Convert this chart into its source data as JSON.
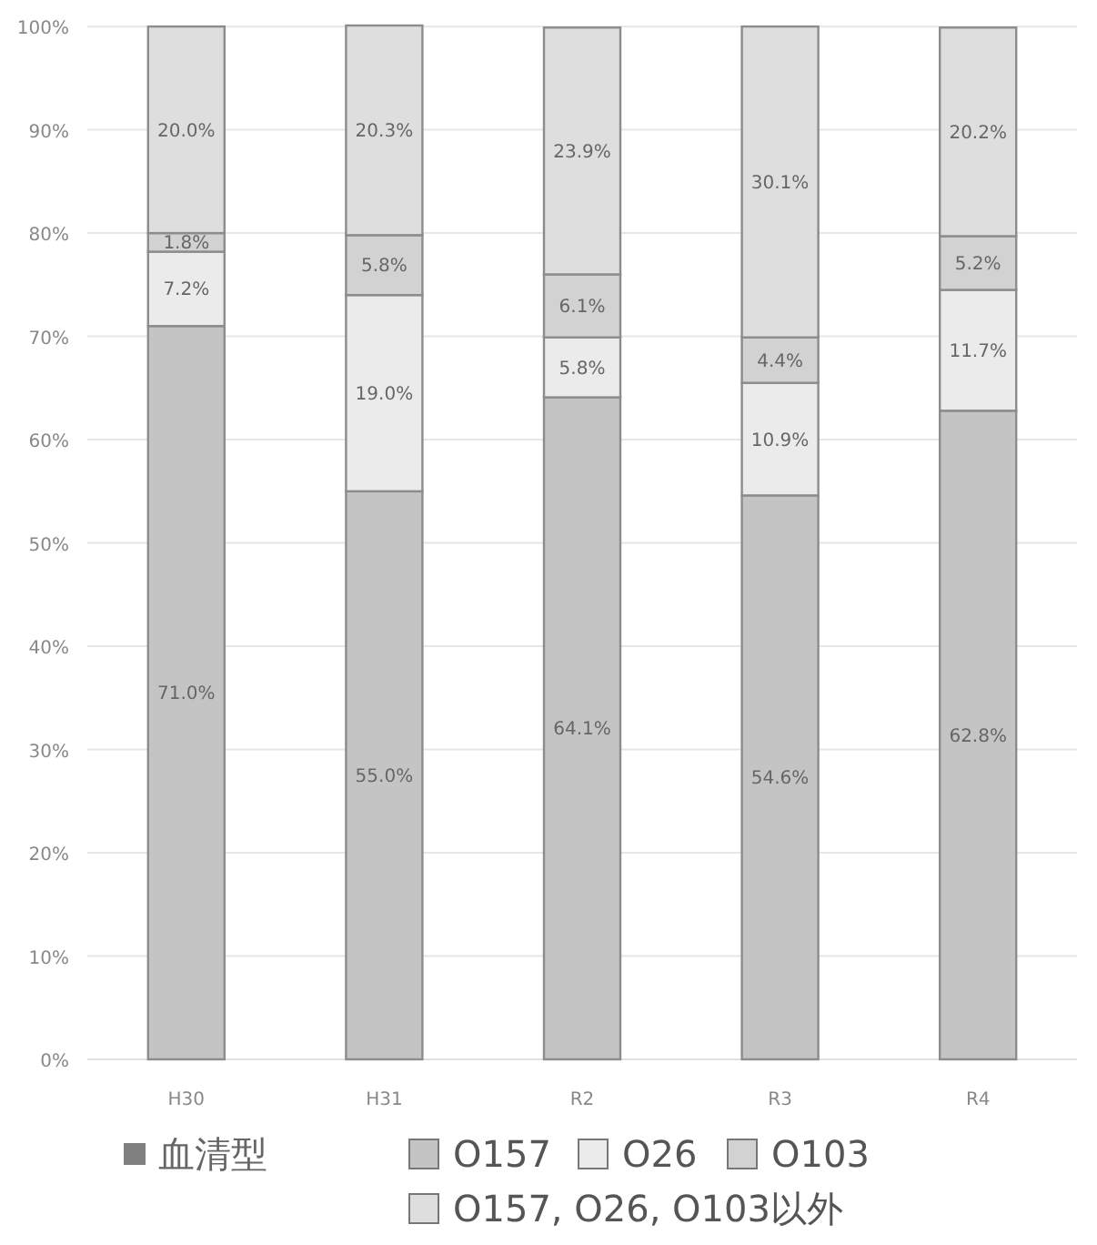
{
  "chart_data": {
    "type": "bar",
    "stacked": true,
    "legend_title": "血清型",
    "legend": "bottom",
    "grid": "y",
    "categories": [
      "H30",
      "H31",
      "R2",
      "R3",
      "R4"
    ],
    "ylim": [
      0,
      100.1
    ],
    "yticks": [
      {
        "value": 0,
        "label": "0%"
      },
      {
        "value": 10,
        "label": "10%"
      },
      {
        "value": 20,
        "label": "20%"
      },
      {
        "value": 30,
        "label": "30%"
      },
      {
        "value": 40,
        "label": "40%"
      },
      {
        "value": 50,
        "label": "50%"
      },
      {
        "value": 60,
        "label": "60%"
      },
      {
        "value": 70,
        "label": "70%"
      },
      {
        "value": 80,
        "label": "80%"
      },
      {
        "value": 90,
        "label": "90%"
      },
      {
        "value": 100,
        "label": "100%"
      }
    ],
    "series": [
      {
        "name": "O157",
        "color": "#c4c4c4",
        "values": [
          71.0,
          55.0,
          64.1,
          54.6,
          62.8
        ],
        "value_labels": [
          "71.0%",
          "55.0%",
          "64.1%",
          "54.6%",
          "62.8%"
        ]
      },
      {
        "name": "O26",
        "color": "#ebebeb",
        "values": [
          7.2,
          19.0,
          5.8,
          10.9,
          11.7
        ],
        "value_labels": [
          "7.2%",
          "19.0%",
          "5.8%",
          "10.9%",
          "11.7%"
        ]
      },
      {
        "name": "O103",
        "color": "#d2d2d2",
        "values": [
          1.8,
          5.8,
          6.1,
          4.4,
          5.2
        ],
        "value_labels": [
          "1.8%",
          "5.8%",
          "6.1%",
          "4.4%",
          "5.2%"
        ]
      },
      {
        "name": "O157, O26, O103以外",
        "color": "#dedede",
        "values": [
          20.0,
          20.3,
          23.9,
          30.1,
          20.2
        ],
        "value_labels": [
          "20.0%",
          "20.3%",
          "23.9%",
          "30.1%",
          "20.2%"
        ]
      }
    ]
  }
}
